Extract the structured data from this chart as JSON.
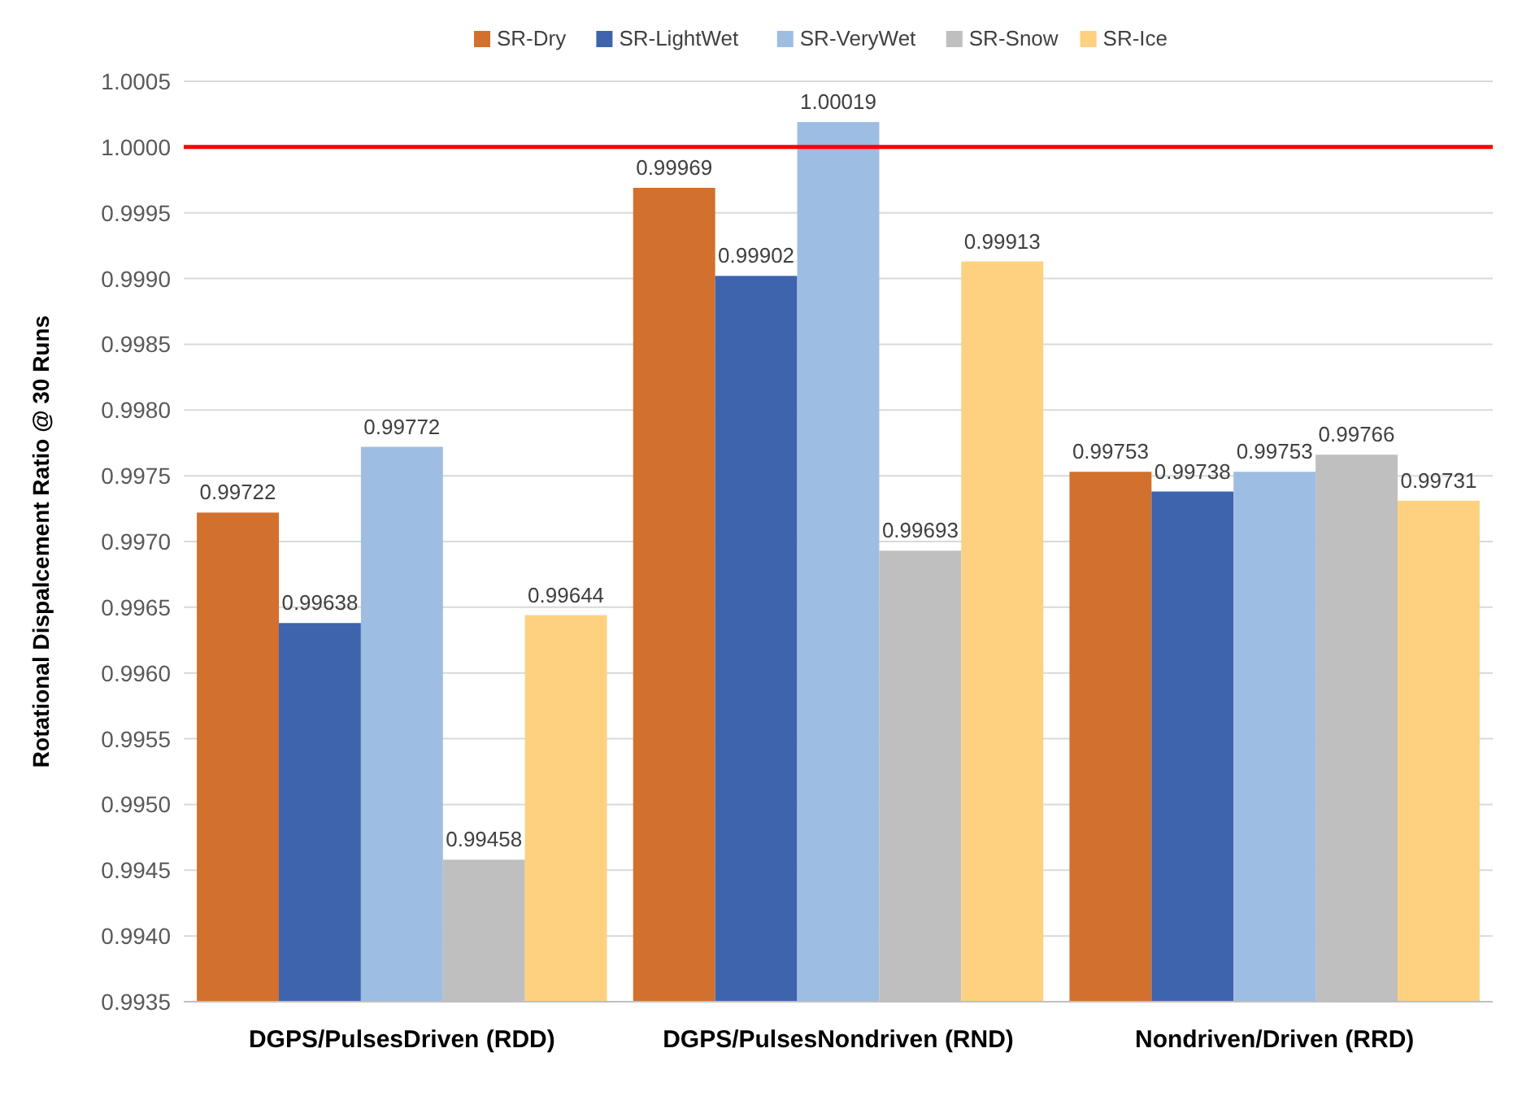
{
  "chart_data": {
    "type": "bar",
    "ylabel": "Rotational Dispalcement Ratio @ 30 Runs",
    "categories": [
      "DGPS/PulsesDriven (RDD)",
      "DGPS/PulsesNondriven (RND)",
      "Nondriven/Driven (RRD)"
    ],
    "series": [
      {
        "name": "SR-Dry",
        "color": "#d2702e",
        "values": [
          0.99722,
          0.99969,
          0.99753
        ]
      },
      {
        "name": "SR-LightWet",
        "color": "#3d64ad",
        "values": [
          0.99638,
          0.99902,
          0.99738
        ]
      },
      {
        "name": "SR-VeryWet",
        "color": "#9dbde2",
        "values": [
          0.99772,
          1.00019,
          0.99753
        ]
      },
      {
        "name": "SR-Snow",
        "color": "#bfbfbf",
        "values": [
          0.99458,
          0.99693,
          0.99766
        ]
      },
      {
        "name": "SR-Ice",
        "color": "#fdd17f",
        "values": [
          0.99644,
          0.99913,
          0.99731
        ]
      }
    ],
    "ylim": [
      0.9935,
      1.0005
    ],
    "yticks": [
      {
        "value": 0.9935,
        "label": "0.9935"
      },
      {
        "value": 0.994,
        "label": "0.9940"
      },
      {
        "value": 0.9945,
        "label": "0.9945"
      },
      {
        "value": 0.995,
        "label": "0.9950"
      },
      {
        "value": 0.9955,
        "label": "0.9955"
      },
      {
        "value": 0.996,
        "label": "0.9960"
      },
      {
        "value": 0.9965,
        "label": "0.9965"
      },
      {
        "value": 0.997,
        "label": "0.9970"
      },
      {
        "value": 0.9975,
        "label": "0.9975"
      },
      {
        "value": 0.998,
        "label": "0.9980"
      },
      {
        "value": 0.9985,
        "label": "0.9985"
      },
      {
        "value": 0.999,
        "label": "0.9990"
      },
      {
        "value": 0.9995,
        "label": "0.9995"
      },
      {
        "value": 1,
        "label": "1.0000"
      },
      {
        "value": 1.0005,
        "label": "1.0005"
      }
    ],
    "grid": "y",
    "legend": "top",
    "data_labels": true,
    "ref_lines": [
      {
        "axis": "y",
        "value": 1,
        "color": "#ff0000"
      }
    ]
  }
}
